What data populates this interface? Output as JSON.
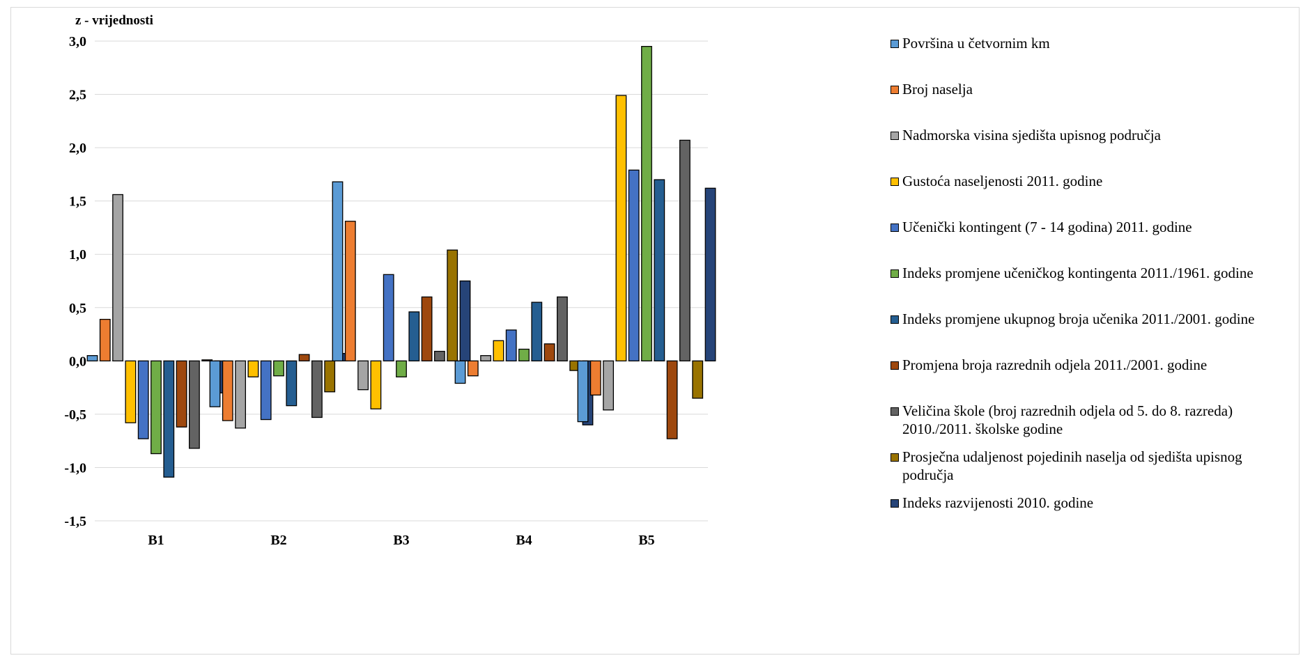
{
  "chart_data": {
    "type": "bar",
    "ylabel": "z - vrijednosti",
    "ylim": [
      -1.5,
      3.0
    ],
    "yticks": [
      "-1,5",
      "-1,0",
      "-0,5",
      "0,0",
      "0,5",
      "1,0",
      "1,5",
      "2,0",
      "2,5",
      "3,0"
    ],
    "ytick_values": [
      -1.5,
      -1.0,
      -0.5,
      0.0,
      0.5,
      1.0,
      1.5,
      2.0,
      2.5,
      3.0
    ],
    "grid": "horizontal",
    "legend_position": "right",
    "categories": [
      "B1",
      "B2",
      "B3",
      "B4",
      "B5"
    ],
    "series": [
      {
        "name": "Površina u četvornim km",
        "color": "#5B9BD5",
        "values": [
          0.05,
          -0.43,
          1.68,
          -0.21,
          -0.57
        ]
      },
      {
        "name": "Broj naselja",
        "color": "#ED7D31",
        "values": [
          0.39,
          -0.56,
          1.31,
          -0.14,
          -0.32
        ]
      },
      {
        "name": "Nadmorska visina sjedišta upisnog područja",
        "color": "#A5A5A5",
        "values": [
          1.56,
          -0.63,
          -0.27,
          0.05,
          -0.46
        ]
      },
      {
        "name": "Gustoća naseljenosti 2011. godine",
        "color": "#FFC000",
        "values": [
          -0.58,
          -0.15,
          -0.45,
          0.19,
          2.49
        ]
      },
      {
        "name": "Učenički kontingent (7 - 14 godina) 2011. godine",
        "color": "#4472C4",
        "values": [
          -0.73,
          -0.55,
          0.81,
          0.29,
          1.79
        ]
      },
      {
        "name": "Indeks promjene učeničkog kontingenta 2011./1961. godine",
        "color": "#70AD47",
        "values": [
          -0.87,
          -0.14,
          -0.15,
          0.11,
          2.95
        ]
      },
      {
        "name": "Indeks promjene ukupnog broja učenika 2011./2001. godine",
        "color": "#255E91",
        "values": [
          -1.09,
          -0.42,
          0.46,
          0.55,
          1.7
        ]
      },
      {
        "name": "Promjena broja razrednih odjela 2011./2001. godine",
        "color": "#9E480E",
        "values": [
          -0.62,
          0.06,
          0.6,
          0.16,
          -0.73
        ]
      },
      {
        "name": "Veličina škole (broj razrednih odjela od 5. do 8. razreda)\n2010./2011. školske godine",
        "color": "#636363",
        "values": [
          -0.82,
          -0.53,
          0.09,
          0.6,
          2.07
        ]
      },
      {
        "name": "Prosječna udaljenost pojedinih naselja od sjedišta upisnog\npodručja",
        "color": "#997300",
        "values": [
          0.01,
          -0.29,
          1.04,
          -0.09,
          -0.35
        ]
      },
      {
        "name": "Indeks razvijenosti 2010. godine",
        "color": "#264478",
        "values": [
          -0.3,
          0.07,
          0.75,
          -0.6,
          1.62
        ]
      }
    ]
  }
}
